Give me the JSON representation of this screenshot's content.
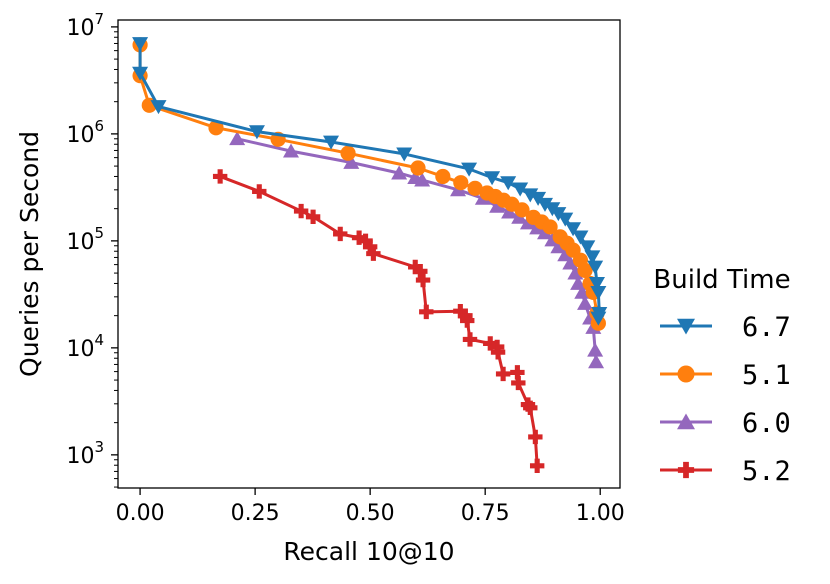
{
  "chart_data": {
    "type": "line",
    "xlabel": "Recall 10@10",
    "ylabel": "Queries per Second",
    "xlim": [
      -0.048,
      1.043
    ],
    "ylim": [
      490,
      11600000
    ],
    "yscale": "log",
    "grid": false,
    "xticks": [
      "0.00",
      "0.25",
      "0.50",
      "0.75",
      "1.00"
    ],
    "xtick_values": [
      0,
      0.25,
      0.5,
      0.75,
      1.0
    ],
    "yticks": [
      {
        "base": "10",
        "exp": "3"
      },
      {
        "base": "10",
        "exp": "4"
      },
      {
        "base": "10",
        "exp": "5"
      },
      {
        "base": "10",
        "exp": "6"
      },
      {
        "base": "10",
        "exp": "7"
      }
    ],
    "ytick_values": [
      1000,
      10000,
      100000,
      1000000,
      10000000
    ],
    "legend": {
      "title": "Build Time",
      "placement": "outside-right"
    },
    "series": [
      {
        "name": "6.7",
        "color": "#1f77b4",
        "marker": "triangle-down",
        "points": [
          [
            0.0,
            7000000
          ],
          [
            0.0,
            3700000
          ],
          [
            0.04,
            1800000
          ],
          [
            0.254,
            1050000
          ],
          [
            0.415,
            840000
          ],
          [
            0.574,
            650000
          ],
          [
            0.715,
            470000
          ],
          [
            0.765,
            390000
          ],
          [
            0.8,
            350000
          ],
          [
            0.826,
            306000
          ],
          [
            0.848,
            270000
          ],
          [
            0.865,
            250000
          ],
          [
            0.88,
            220000
          ],
          [
            0.896,
            200000
          ],
          [
            0.909,
            180000
          ],
          [
            0.924,
            160000
          ],
          [
            0.941,
            130000
          ],
          [
            0.957,
            109000
          ],
          [
            0.972,
            88000
          ],
          [
            0.983,
            71000
          ],
          [
            0.989,
            57000
          ],
          [
            0.993,
            40000
          ],
          [
            0.996,
            33000
          ],
          [
            0.998,
            21000
          ],
          [
            0.996,
            19000
          ]
        ]
      },
      {
        "name": "5.1",
        "color": "#ff7f0e",
        "marker": "circle",
        "points": [
          [
            0.0,
            6800000
          ],
          [
            0.0,
            3500000
          ],
          [
            0.02,
            1850000
          ],
          [
            0.165,
            1140000
          ],
          [
            0.3,
            890000
          ],
          [
            0.452,
            660000
          ],
          [
            0.604,
            480000
          ],
          [
            0.658,
            400000
          ],
          [
            0.697,
            350000
          ],
          [
            0.728,
            310000
          ],
          [
            0.754,
            280000
          ],
          [
            0.772,
            260000
          ],
          [
            0.79,
            240000
          ],
          [
            0.808,
            220000
          ],
          [
            0.83,
            195000
          ],
          [
            0.855,
            166000
          ],
          [
            0.873,
            150000
          ],
          [
            0.891,
            135000
          ],
          [
            0.913,
            109000
          ],
          [
            0.928,
            95000
          ],
          [
            0.941,
            82000
          ],
          [
            0.957,
            66000
          ],
          [
            0.967,
            53000
          ],
          [
            0.978,
            40000
          ],
          [
            0.985,
            33000
          ],
          [
            0.993,
            21000
          ],
          [
            0.996,
            17000
          ]
        ]
      },
      {
        "name": "6.0",
        "color": "#9467bd",
        "marker": "triangle-up",
        "points": [
          [
            0.211,
            900000
          ],
          [
            0.328,
            690000
          ],
          [
            0.459,
            540000
          ],
          [
            0.563,
            430000
          ],
          [
            0.598,
            390000
          ],
          [
            0.613,
            370000
          ],
          [
            0.691,
            300000
          ],
          [
            0.745,
            250000
          ],
          [
            0.776,
            210000
          ],
          [
            0.802,
            186000
          ],
          [
            0.824,
            166000
          ],
          [
            0.843,
            147000
          ],
          [
            0.863,
            132000
          ],
          [
            0.88,
            119000
          ],
          [
            0.896,
            102000
          ],
          [
            0.909,
            88000
          ],
          [
            0.924,
            74000
          ],
          [
            0.935,
            62000
          ],
          [
            0.946,
            50000
          ],
          [
            0.952,
            40000
          ],
          [
            0.961,
            33000
          ],
          [
            0.967,
            26000
          ],
          [
            0.978,
            19000
          ],
          [
            0.985,
            15500
          ],
          [
            0.989,
            9500
          ],
          [
            0.991,
            7400
          ]
        ]
      },
      {
        "name": "5.2",
        "color": "#d62728",
        "marker": "plus",
        "points": [
          [
            0.174,
            400000
          ],
          [
            0.259,
            290000
          ],
          [
            0.35,
            190000
          ],
          [
            0.376,
            168000
          ],
          [
            0.435,
            116000
          ],
          [
            0.476,
            107000
          ],
          [
            0.49,
            100000
          ],
          [
            0.5,
            88000
          ],
          [
            0.507,
            76000
          ],
          [
            0.598,
            57000
          ],
          [
            0.609,
            52000
          ],
          [
            0.615,
            43000
          ],
          [
            0.622,
            21700
          ],
          [
            0.696,
            22000
          ],
          [
            0.707,
            20000
          ],
          [
            0.711,
            18000
          ],
          [
            0.717,
            12000
          ],
          [
            0.761,
            11000
          ],
          [
            0.776,
            10200
          ],
          [
            0.778,
            9100
          ],
          [
            0.789,
            5700
          ],
          [
            0.82,
            5900
          ],
          [
            0.822,
            4700
          ],
          [
            0.843,
            2950
          ],
          [
            0.848,
            2750
          ],
          [
            0.859,
            1470
          ],
          [
            0.863,
            790
          ]
        ]
      }
    ]
  }
}
